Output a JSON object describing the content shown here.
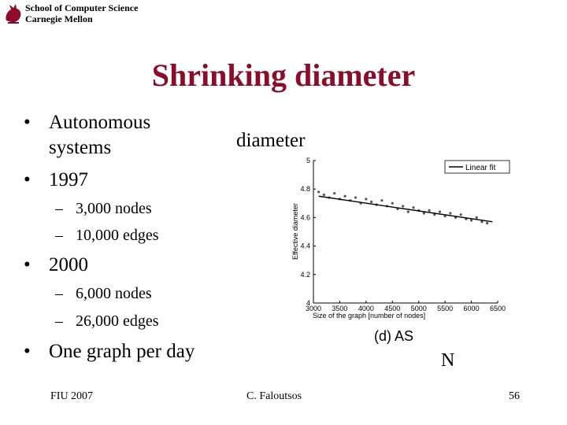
{
  "header": {
    "line1": "School of Computer Science",
    "line2": "Carnegie Mellon"
  },
  "title": "Shrinking diameter",
  "bullets": [
    {
      "label": "Autonomous systems",
      "line1": "Autonomous",
      "line2": "systems"
    },
    {
      "label": "1997",
      "subs": [
        "3,000 nodes",
        "10,000 edges"
      ]
    },
    {
      "label": "2000",
      "subs": [
        "6,000 nodes",
        "26,000 edges"
      ]
    },
    {
      "label": "One graph per day"
    }
  ],
  "bullet_glyph": "•",
  "dash_glyph": "–",
  "diameter_label": "diameter",
  "n_label": "N",
  "footer": {
    "left": "FIU 2007",
    "center": "C. Faloutsos",
    "right": "56"
  },
  "colors": {
    "title": "#8b0d2a",
    "logo": "#8b0d2a"
  },
  "chart_data": {
    "type": "scatter",
    "caption": "(d) AS",
    "xlabel": "Size of the graph [number of nodes]",
    "ylabel": "Effective diameter",
    "xlim": [
      3000,
      6500
    ],
    "ylim": [
      4,
      5
    ],
    "xticks": [
      3000,
      3500,
      4000,
      4500,
      5000,
      5500,
      6000,
      6500
    ],
    "yticks": [
      4,
      4.2,
      4.4,
      4.6,
      4.8,
      5
    ],
    "legend": "Linear fit",
    "legend_position": "top-right",
    "fit": {
      "x": [
        3100,
        6400
      ],
      "y": [
        4.75,
        4.57
      ]
    },
    "series": [
      {
        "name": "",
        "x": [
          3100,
          3200,
          3300,
          3400,
          3500,
          3600,
          3700,
          3800,
          3900,
          4000,
          4100,
          4200,
          4300,
          4400,
          4500,
          4600,
          4700,
          4800,
          4900,
          5000,
          5100,
          5200,
          5300,
          5400,
          5500,
          5600,
          5700,
          5800,
          5900,
          6000,
          6100,
          6200,
          6300
        ],
        "y": [
          4.78,
          4.76,
          4.74,
          4.77,
          4.73,
          4.75,
          4.72,
          4.74,
          4.7,
          4.73,
          4.71,
          4.69,
          4.72,
          4.68,
          4.7,
          4.66,
          4.68,
          4.64,
          4.67,
          4.65,
          4.63,
          4.65,
          4.62,
          4.64,
          4.61,
          4.63,
          4.6,
          4.62,
          4.59,
          4.58,
          4.6,
          4.57,
          4.56
        ]
      }
    ]
  }
}
